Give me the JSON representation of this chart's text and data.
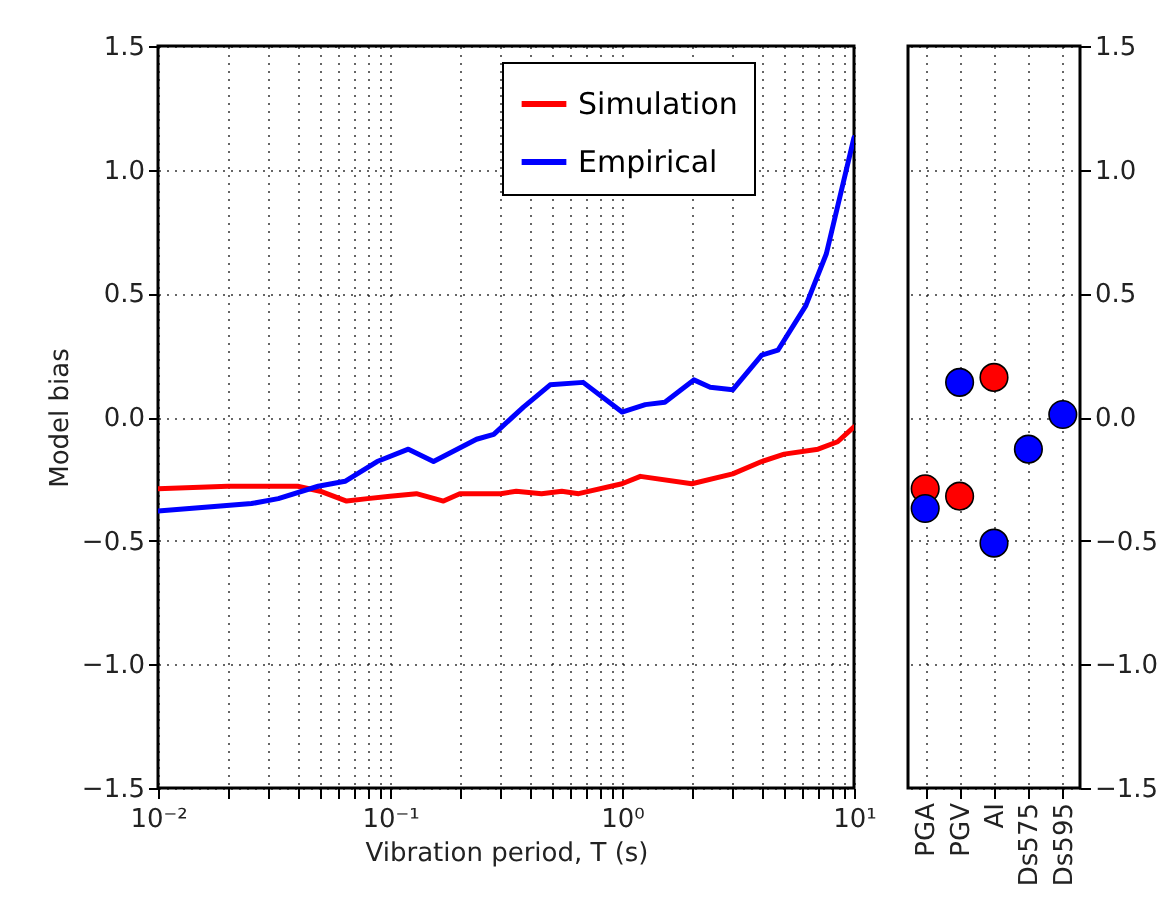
{
  "chart_data": [
    {
      "type": "line",
      "xlabel": "Vibration period, T (s)",
      "ylabel": "Model bias",
      "log": "x",
      "grid": true,
      "legend": "top right",
      "xlim": [
        0.01,
        10
      ],
      "xticks": [
        {
          "value": 0.01,
          "label": "10⁻²"
        },
        {
          "value": 0.02,
          "label": null
        },
        {
          "value": 0.03,
          "label": null
        },
        {
          "value": 0.04,
          "label": null
        },
        {
          "value": 0.05,
          "label": null
        },
        {
          "value": 0.06,
          "label": null
        },
        {
          "value": 0.07,
          "label": null
        },
        {
          "value": 0.08,
          "label": null
        },
        {
          "value": 0.09,
          "label": null
        },
        {
          "value": 0.1,
          "label": "10⁻¹"
        },
        {
          "value": 0.2,
          "label": null
        },
        {
          "value": 0.3,
          "label": null
        },
        {
          "value": 0.4,
          "label": null
        },
        {
          "value": 0.5,
          "label": null
        },
        {
          "value": 0.6,
          "label": null
        },
        {
          "value": 0.7,
          "label": null
        },
        {
          "value": 0.8,
          "label": null
        },
        {
          "value": 0.9,
          "label": null
        },
        {
          "value": 1,
          "label": "10⁰"
        },
        {
          "value": 2,
          "label": null
        },
        {
          "value": 3,
          "label": null
        },
        {
          "value": 4,
          "label": null
        },
        {
          "value": 5,
          "label": null
        },
        {
          "value": 6,
          "label": null
        },
        {
          "value": 7,
          "label": null
        },
        {
          "value": 8,
          "label": null
        },
        {
          "value": 9,
          "label": null
        },
        {
          "value": 10,
          "label": "10¹"
        }
      ],
      "ylim": [
        -1.5,
        1.5
      ],
      "yticks": [
        {
          "value": -1.5,
          "label": "−1.5"
        },
        {
          "value": -1,
          "label": "−1.0"
        },
        {
          "value": -0.5,
          "label": "−0.5"
        },
        {
          "value": 0,
          "label": "0.0"
        },
        {
          "value": 0.5,
          "label": "0.5"
        },
        {
          "value": 1,
          "label": "1.0"
        },
        {
          "value": 1.5,
          "label": "1.5"
        }
      ],
      "series": [
        {
          "name": "Simulation",
          "color": "#ff0000",
          "x": [
            0.01,
            0.02,
            0.04,
            0.05,
            0.065,
            0.08,
            0.1,
            0.13,
            0.17,
            0.2,
            0.3,
            0.35,
            0.45,
            0.55,
            0.65,
            1.0,
            1.2,
            2.0,
            3.0,
            4.0,
            5.0,
            7.0,
            8.5,
            10
          ],
          "values": [
            -0.29,
            -0.28,
            -0.28,
            -0.3,
            -0.34,
            -0.33,
            -0.32,
            -0.31,
            -0.34,
            -0.31,
            -0.31,
            -0.3,
            -0.31,
            -0.3,
            -0.31,
            -0.27,
            -0.24,
            -0.27,
            -0.23,
            -0.18,
            -0.15,
            -0.13,
            -0.1,
            -0.04
          ]
        },
        {
          "name": "Empirical",
          "color": "#0000ff",
          "x": [
            0.01,
            0.0253,
            0.033,
            0.049,
            0.064,
            0.088,
            0.12,
            0.154,
            0.236,
            0.28,
            0.376,
            0.49,
            0.68,
            1.0,
            1.26,
            1.53,
            2.04,
            2.4,
            3.0,
            4.0,
            4.7,
            6.2,
            7.6,
            10
          ],
          "values": [
            -0.38,
            -0.35,
            -0.33,
            -0.28,
            -0.26,
            -0.18,
            -0.13,
            -0.18,
            -0.09,
            -0.07,
            0.04,
            0.13,
            0.14,
            0.02,
            0.05,
            0.06,
            0.15,
            0.12,
            0.11,
            0.25,
            0.27,
            0.45,
            0.66,
            1.13
          ]
        }
      ]
    },
    {
      "type": "scatter",
      "categories": [
        "PGA",
        "PGV",
        "AI",
        "Ds575",
        "Ds595"
      ],
      "grid": true,
      "marker": "circle",
      "ylim": [
        -1.5,
        1.5
      ],
      "yticks": [
        {
          "value": -1.5,
          "label": "−1.5"
        },
        {
          "value": -1,
          "label": "−1.0"
        },
        {
          "value": -0.5,
          "label": "−0.5"
        },
        {
          "value": 0,
          "label": "0.0"
        },
        {
          "value": 0.5,
          "label": "0.5"
        },
        {
          "value": 1,
          "label": "1.0"
        },
        {
          "value": 1.5,
          "label": "1.5"
        }
      ],
      "series": [
        {
          "color": "#ff0000",
          "values": [
            -0.29,
            -0.32,
            0.16,
            null,
            null
          ]
        },
        {
          "color": "#0000ff",
          "values": [
            -0.37,
            0.14,
            -0.51,
            -0.13,
            0.01
          ]
        }
      ]
    }
  ]
}
